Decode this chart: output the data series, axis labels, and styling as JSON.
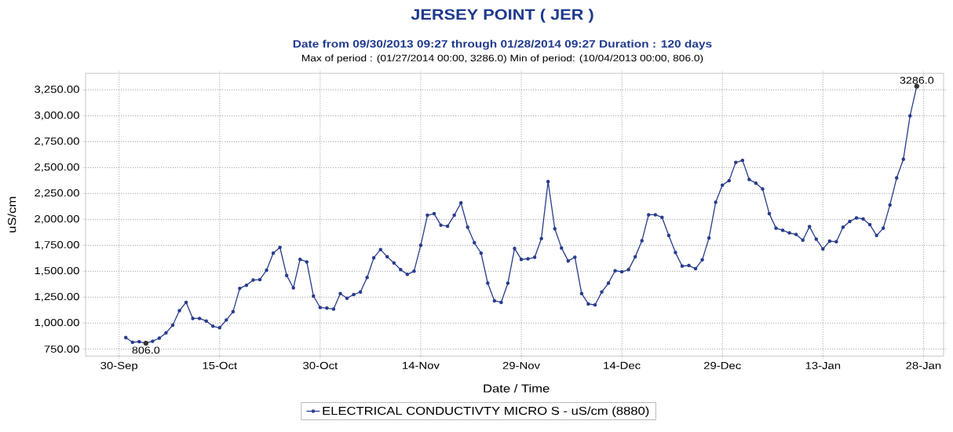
{
  "chart_data": {
    "type": "line",
    "title": "JERSEY POINT ( JER )",
    "subtitle": "Date from 09/30/2013 09:27 through 01/28/2014 09:27 Duration : 120 days",
    "annotations": [
      "Max of period : (01/27/2014 00:00, 3286.0)  Min of period: (10/04/2013 00:00,  806.0)",
      {
        "text": "806.0",
        "x": "2013-10-04",
        "y": 806
      },
      {
        "text": "3286.0",
        "x": "2014-01-27",
        "y": 3286
      }
    ],
    "xlabel": "Date / Time",
    "ylabel": "uS/cm",
    "x": [
      "2013-10-01",
      "2013-10-02",
      "2013-10-03",
      "2013-10-04",
      "2013-10-05",
      "2013-10-06",
      "2013-10-07",
      "2013-10-08",
      "2013-10-09",
      "2013-10-10",
      "2013-10-11",
      "2013-10-12",
      "2013-10-13",
      "2013-10-14",
      "2013-10-15",
      "2013-10-16",
      "2013-10-17",
      "2013-10-18",
      "2013-10-19",
      "2013-10-20",
      "2013-10-21",
      "2013-10-22",
      "2013-10-23",
      "2013-10-24",
      "2013-10-25",
      "2013-10-26",
      "2013-10-27",
      "2013-10-28",
      "2013-10-29",
      "2013-10-30",
      "2013-10-31",
      "2013-11-01",
      "2013-11-02",
      "2013-11-03",
      "2013-11-04",
      "2013-11-05",
      "2013-11-06",
      "2013-11-07",
      "2013-11-08",
      "2013-11-09",
      "2013-11-10",
      "2013-11-11",
      "2013-11-12",
      "2013-11-13",
      "2013-11-14",
      "2013-11-15",
      "2013-11-16",
      "2013-11-17",
      "2013-11-18",
      "2013-11-19",
      "2013-11-20",
      "2013-11-21",
      "2013-11-22",
      "2013-11-23",
      "2013-11-24",
      "2013-11-25",
      "2013-11-26",
      "2013-11-27",
      "2013-11-28",
      "2013-11-29",
      "2013-11-30",
      "2013-12-01",
      "2013-12-02",
      "2013-12-03",
      "2013-12-04",
      "2013-12-05",
      "2013-12-06",
      "2013-12-07",
      "2013-12-08",
      "2013-12-09",
      "2013-12-10",
      "2013-12-11",
      "2013-12-12",
      "2013-12-13",
      "2013-12-14",
      "2013-12-15",
      "2013-12-16",
      "2013-12-17",
      "2013-12-18",
      "2013-12-19",
      "2013-12-20",
      "2013-12-21",
      "2013-12-22",
      "2013-12-23",
      "2013-12-24",
      "2013-12-25",
      "2013-12-26",
      "2013-12-27",
      "2013-12-28",
      "2013-12-29",
      "2013-12-30",
      "2013-12-31",
      "2014-01-01",
      "2014-01-02",
      "2014-01-03",
      "2014-01-04",
      "2014-01-05",
      "2014-01-06",
      "2014-01-07",
      "2014-01-08",
      "2014-01-09",
      "2014-01-10",
      "2014-01-11",
      "2014-01-12",
      "2014-01-13",
      "2014-01-14",
      "2014-01-15",
      "2014-01-16",
      "2014-01-17",
      "2014-01-18",
      "2014-01-19",
      "2014-01-20",
      "2014-01-21",
      "2014-01-22",
      "2014-01-23",
      "2014-01-24",
      "2014-01-25",
      "2014-01-26",
      "2014-01-27"
    ],
    "series": [
      {
        "name": "ELECTRICAL CONDUCTIVTY MICRO S - uS/cm (8880)",
        "color": "#283c8c",
        "values": [
          860,
          815,
          820,
          806,
          825,
          855,
          905,
          980,
          1120,
          1200,
          1045,
          1045,
          1020,
          970,
          955,
          1030,
          1110,
          1335,
          1365,
          1415,
          1420,
          1510,
          1675,
          1730,
          1460,
          1340,
          1615,
          1590,
          1260,
          1150,
          1145,
          1135,
          1285,
          1240,
          1275,
          1300,
          1440,
          1630,
          1710,
          1640,
          1580,
          1515,
          1470,
          1500,
          1750,
          2040,
          2055,
          1945,
          1935,
          2040,
          2160,
          1925,
          1775,
          1675,
          1385,
          1215,
          1200,
          1385,
          1720,
          1615,
          1620,
          1635,
          1815,
          2365,
          1910,
          1725,
          1600,
          1635,
          1285,
          1185,
          1175,
          1300,
          1385,
          1505,
          1495,
          1515,
          1640,
          1795,
          2045,
          2045,
          2020,
          1845,
          1680,
          1550,
          1555,
          1525,
          1610,
          1820,
          2165,
          2330,
          2375,
          2550,
          2570,
          2385,
          2350,
          2295,
          2055,
          1915,
          1895,
          1870,
          1855,
          1800,
          1930,
          1810,
          1715,
          1790,
          1785,
          1925,
          1980,
          2015,
          2005,
          1950,
          1845,
          1915,
          2140,
          2400,
          2580,
          3000,
          3286
        ]
      }
    ],
    "xlim": [
      "2013-09-25",
      "2014-01-31"
    ],
    "xticks": [
      {
        "value": "2013-09-30",
        "label": "30-Sep"
      },
      {
        "value": "2013-10-15",
        "label": "15-Oct"
      },
      {
        "value": "2013-10-30",
        "label": "30-Oct"
      },
      {
        "value": "2013-11-14",
        "label": "14-Nov"
      },
      {
        "value": "2013-11-29",
        "label": "29-Nov"
      },
      {
        "value": "2013-12-14",
        "label": "14-Dec"
      },
      {
        "value": "2013-12-29",
        "label": "29-Dec"
      },
      {
        "value": "2014-01-13",
        "label": "13-Jan"
      },
      {
        "value": "2014-01-28",
        "label": "28-Jan"
      }
    ],
    "ylim": [
      682,
      3410
    ],
    "yticks": [
      {
        "value": 750,
        "label": "750.00"
      },
      {
        "value": 1000,
        "label": "1,000.00"
      },
      {
        "value": 1250,
        "label": "1,250.00"
      },
      {
        "value": 1500,
        "label": "1,500.00"
      },
      {
        "value": 1750,
        "label": "1,750.00"
      },
      {
        "value": 2000,
        "label": "2,000.00"
      },
      {
        "value": 2250,
        "label": "2,250.00"
      },
      {
        "value": 2500,
        "label": "2,500.00"
      },
      {
        "value": 2750,
        "label": "2,750.00"
      },
      {
        "value": 3000,
        "label": "3,000.00"
      },
      {
        "value": 3250,
        "label": "3,250.00"
      }
    ],
    "grid": true,
    "legend": "bottom",
    "marker": "circle",
    "line_style": "solid"
  }
}
